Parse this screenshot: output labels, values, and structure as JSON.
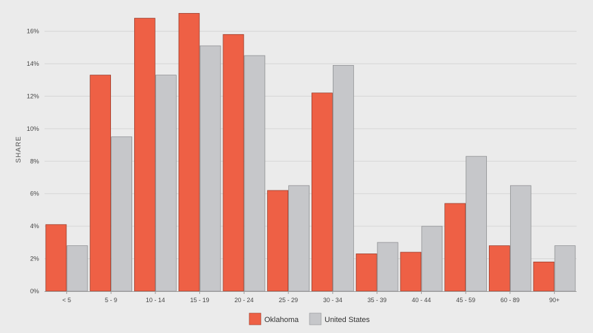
{
  "chart_data": {
    "type": "bar",
    "ylabel": "SHARE",
    "xlabel": "",
    "ylim": [
      0,
      17.5
    ],
    "yticks": [
      0,
      2,
      4,
      6,
      8,
      10,
      12,
      14,
      16
    ],
    "ytick_labels": [
      "0%",
      "2%",
      "4%",
      "6%",
      "8%",
      "10%",
      "12%",
      "14%",
      "16%"
    ],
    "grid": true,
    "legend_position": "bottom-center",
    "categories": [
      "< 5",
      "5 - 9",
      "10 - 14",
      "15 - 19",
      "20 - 24",
      "25 - 29",
      "30 - 34",
      "35 - 39",
      "40 - 44",
      "45 - 59",
      "60 - 89",
      "90+"
    ],
    "series": [
      {
        "name": "Oklahoma",
        "color": "#ee6045",
        "values": [
          4.1,
          13.3,
          16.8,
          17.1,
          15.8,
          6.2,
          12.2,
          2.3,
          2.4,
          5.4,
          2.8,
          1.8
        ]
      },
      {
        "name": "United States",
        "color": "#c6c7ca",
        "values": [
          2.8,
          9.5,
          13.3,
          15.1,
          14.5,
          6.5,
          13.9,
          3.0,
          4.0,
          8.3,
          6.5,
          2.8
        ]
      }
    ]
  }
}
